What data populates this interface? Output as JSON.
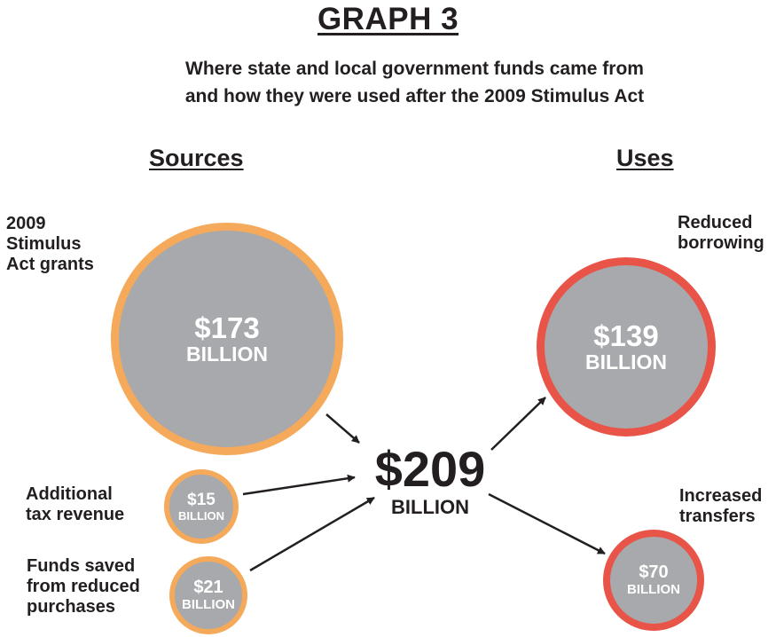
{
  "title": "GRAPH 3",
  "subtitle": {
    "line1": "Where state and local government funds came from",
    "line2": "and how they were used after the 2009 Stimulus Act"
  },
  "headings": {
    "sources": "Sources",
    "uses": "Uses"
  },
  "sources": [
    {
      "label_lines": [
        "2009",
        "Stimulus",
        "Act grants"
      ],
      "amount": "$173",
      "unit": "BILLION",
      "value": 173
    },
    {
      "label_lines": [
        "Additional",
        "tax revenue"
      ],
      "amount": "$15",
      "unit": "BILLION",
      "value": 15
    },
    {
      "label_lines": [
        "Funds saved",
        "from reduced",
        "purchases"
      ],
      "amount": "$21",
      "unit": "BILLION",
      "value": 21
    }
  ],
  "total": {
    "amount": "$209",
    "unit": "BILLION",
    "value": 209
  },
  "uses": [
    {
      "label_lines": [
        "Reduced",
        "borrowing"
      ],
      "amount": "$139",
      "unit": "BILLION",
      "value": 139
    },
    {
      "label_lines": [
        "Increased",
        "transfers"
      ],
      "amount": "$70",
      "unit": "BILLION",
      "value": 70
    }
  ],
  "colors": {
    "sources_ring": "#f5a95a",
    "uses_ring": "#e85448",
    "bubble_fill": "#a7a9ac",
    "text": "#231f20"
  }
}
